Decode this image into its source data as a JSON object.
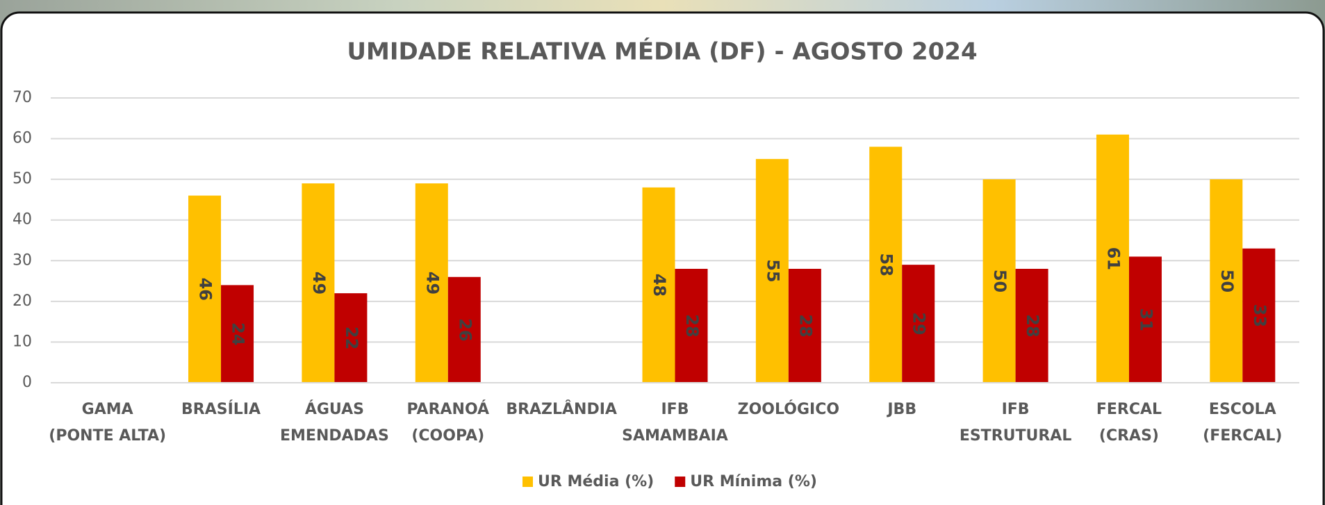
{
  "chart_data": {
    "type": "bar",
    "title": "UMIDADE RELATIVA MÉDIA (DF) - AGOSTO 2024",
    "categories": [
      "GAMA\n(PONTE ALTA)",
      "BRASÍLIA",
      "ÁGUAS\nEMENDADAS",
      "PARANOÁ\n(COOPA)",
      "BRAZLÂNDIA",
      "IFB\nSAMAMBAIA",
      "ZOOLÓGICO",
      "JBB",
      "IFB\nESTRUTURAL",
      "FERCAL\n(CRAS)",
      "ESCOLA\n(FERCAL)"
    ],
    "series": [
      {
        "name": "UR Média (%)",
        "color": "#ffc000",
        "values": [
          null,
          46,
          49,
          49,
          null,
          48,
          55,
          58,
          50,
          61,
          50
        ]
      },
      {
        "name": "UR Mínima (%)",
        "color": "#c00000",
        "values": [
          null,
          24,
          22,
          26,
          null,
          28,
          28,
          29,
          28,
          31,
          33
        ]
      }
    ],
    "ylim": [
      0,
      70
    ],
    "yticks": [
      0,
      10,
      20,
      30,
      40,
      50,
      60,
      70
    ],
    "grid": true,
    "legend": "bottom"
  }
}
